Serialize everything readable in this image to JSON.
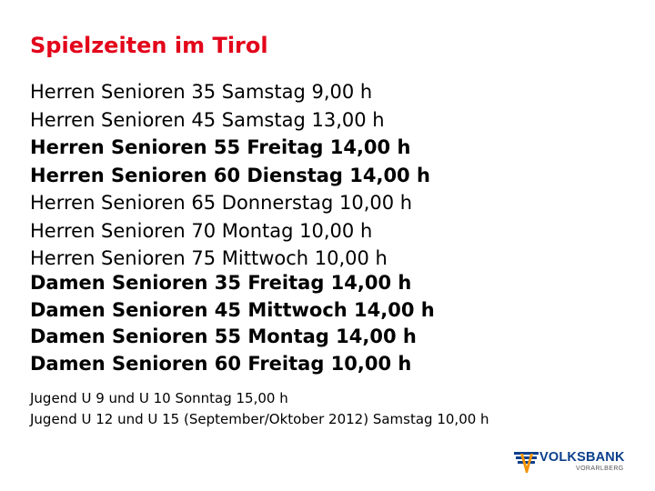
{
  "title": "Spielzeiten im Tirol",
  "title_color": "#e3051b",
  "herren": [
    {
      "text": "Herren Senioren 35 Samstag 9,00 h",
      "bold": false
    },
    {
      "text": "Herren Senioren 45 Samstag 13,00 h",
      "bold": false
    },
    {
      "text": "Herren Senioren 55 Freitag 14,00 h",
      "bold": true
    },
    {
      "text": "Herren Senioren 60 Dienstag 14,00 h",
      "bold": true
    },
    {
      "text": "Herren Senioren 65 Donnerstag 10,00 h",
      "bold": false
    },
    {
      "text": "Herren Senioren 70 Montag 10,00 h",
      "bold": false
    },
    {
      "text": "Herren Senioren 75 Mittwoch 10,00 h",
      "bold": false
    }
  ],
  "damen": [
    "Damen Senioren 35 Freitag 14,00 h",
    "Damen Senioren 45 Mittwoch 14,00 h",
    "Damen Senioren 55 Montag 14,00 h",
    "Damen Senioren 60 Freitag 10,00 h"
  ],
  "jugend": [
    "Jugend U 9 und U 10 Sonntag 15,00 h",
    "Jugend U 12 und U 15 (September/Oktober 2012) Samstag 10,00 h"
  ],
  "logo": {
    "name": "VOLKSBANK",
    "region": "VORARLBERG",
    "name_color": "#0b3f8c",
    "mark_blue": "#0b3f8c",
    "mark_orange": "#f39200",
    "region_color": "#555555"
  }
}
